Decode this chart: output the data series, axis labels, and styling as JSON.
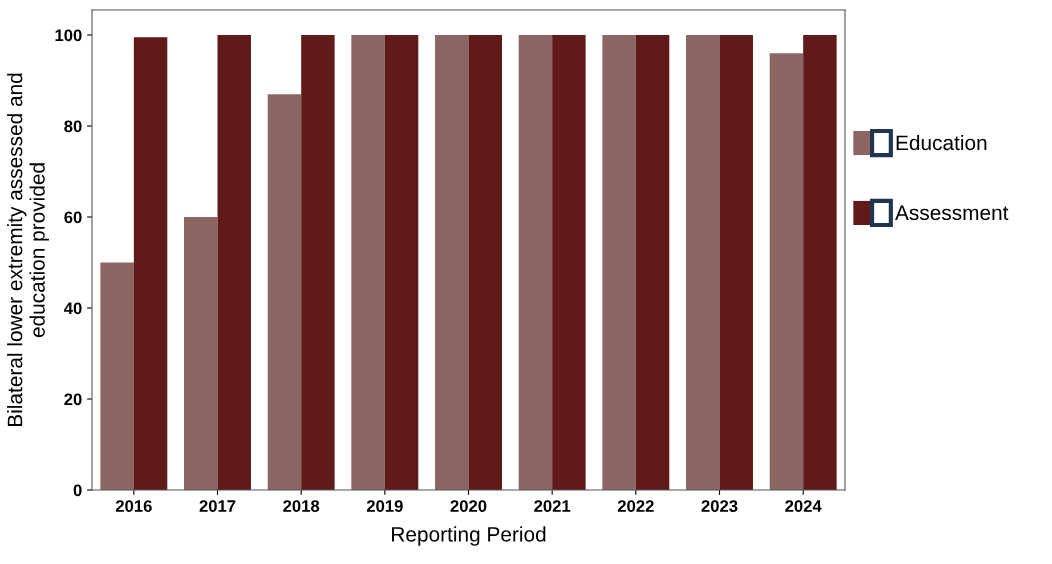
{
  "chart_data": {
    "type": "bar",
    "xlabel": "Reporting Period",
    "ylabel": "Bilateral lower extremity assessed and\neducation provided",
    "categories": [
      "2016",
      "2017",
      "2018",
      "2019",
      "2020",
      "2021",
      "2022",
      "2023",
      "2024"
    ],
    "series": [
      {
        "name": "Education",
        "color": "#8b6663",
        "values": [
          50,
          60,
          87,
          100,
          100,
          100,
          100,
          100,
          96
        ]
      },
      {
        "name": "Assessment",
        "color": "#601a19",
        "values": [
          99.5,
          100,
          100,
          100,
          100,
          100,
          100,
          100,
          100
        ]
      }
    ],
    "ylim": [
      0,
      105.5
    ],
    "yticks": [
      0,
      20,
      40,
      60,
      80,
      100
    ],
    "grid": false,
    "legend": "right"
  }
}
